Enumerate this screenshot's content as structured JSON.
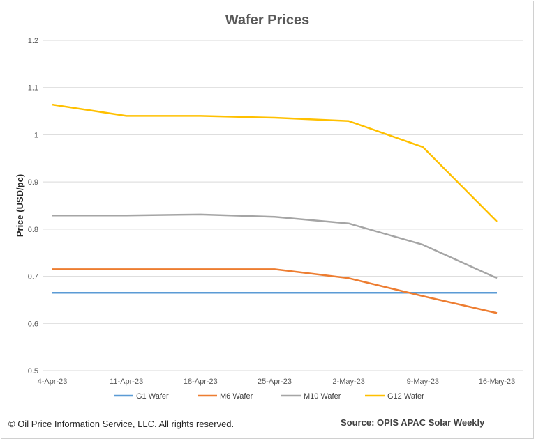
{
  "chart_data": {
    "type": "line",
    "title": "Wafer Prices",
    "xlabel": "",
    "ylabel": "Price (USD/pc)",
    "categories": [
      "4-Apr-23",
      "11-Apr-23",
      "18-Apr-23",
      "25-Apr-23",
      "2-May-23",
      "9-May-23",
      "16-May-23"
    ],
    "ylim": [
      0.5,
      1.2
    ],
    "yticks": [
      "0.5",
      "0.6",
      "0.7",
      "0.8",
      "0.9",
      "1",
      "1.1",
      "1.2"
    ],
    "grid": true,
    "legend_position": "bottom",
    "series": [
      {
        "name": "G1 Wafer",
        "color": "#5b9bd5",
        "values": [
          0.665,
          0.665,
          0.665,
          0.665,
          0.665,
          0.665,
          0.665
        ]
      },
      {
        "name": "M6 Wafer",
        "color": "#ed7d31",
        "values": [
          0.715,
          0.715,
          0.715,
          0.715,
          0.696,
          0.658,
          0.622
        ]
      },
      {
        "name": "M10 Wafer",
        "color": "#a5a5a5",
        "values": [
          0.829,
          0.829,
          0.831,
          0.826,
          0.812,
          0.767,
          0.696
        ]
      },
      {
        "name": "G12 Wafer",
        "color": "#ffc000",
        "values": [
          1.064,
          1.04,
          1.04,
          1.036,
          1.029,
          0.974,
          0.816
        ]
      }
    ]
  },
  "footer": {
    "copyright": "© Oil Price Information Service, LLC.  All rights reserved.",
    "source": "Source: OPIS APAC Solar Weekly"
  }
}
